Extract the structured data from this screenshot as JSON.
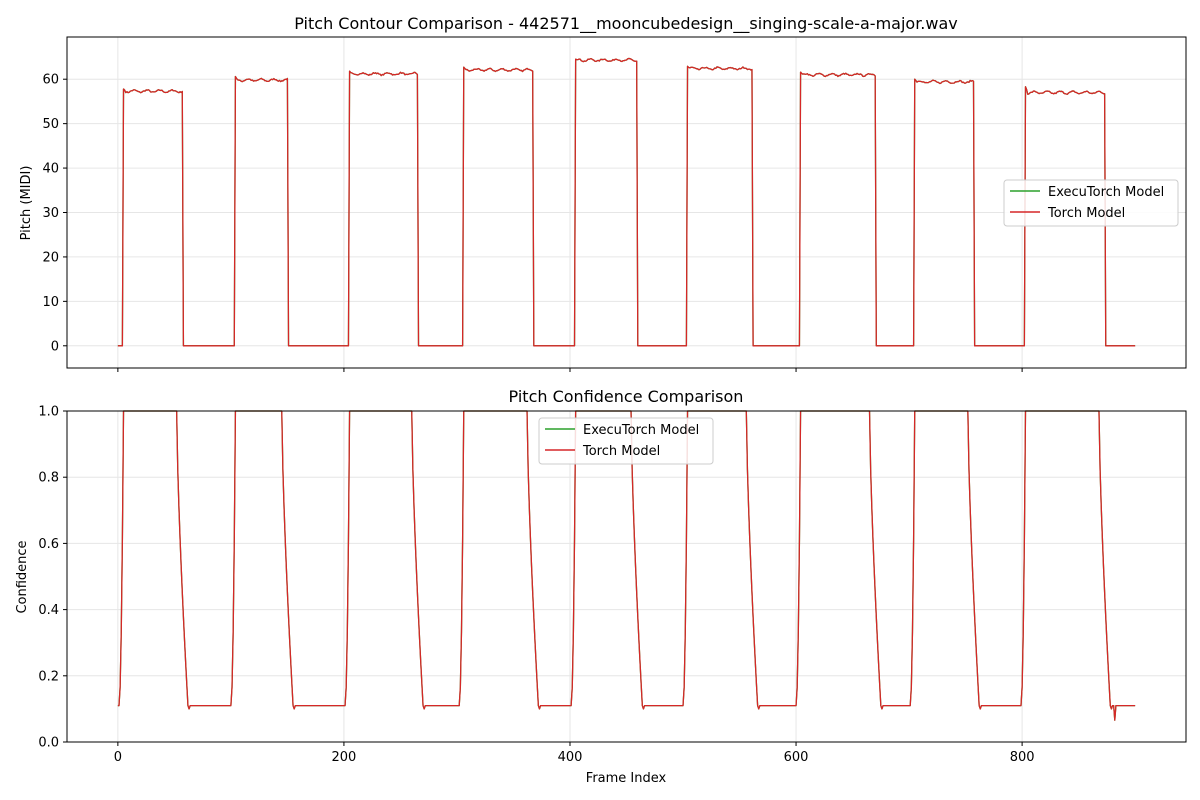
{
  "chart_data": [
    {
      "type": "line",
      "title": "Pitch Contour Comparison - 442571__mooncubedesign__singing-scale-a-major.wav",
      "xlabel": "",
      "ylabel": "Pitch (MIDI)",
      "xlim": [
        -45,
        945
      ],
      "ylim": [
        -5,
        69.5
      ],
      "xticks": [
        0,
        200,
        400,
        600,
        800
      ],
      "xtick_labels": [],
      "yticks": [
        0,
        10,
        20,
        30,
        40,
        50,
        60
      ],
      "ytick_labels": [
        "0",
        "10",
        "20",
        "30",
        "40",
        "50",
        "60"
      ],
      "grid": true,
      "legend_position": "center-right",
      "segments": [
        {
          "start": 5,
          "end": 57,
          "level": 57.3,
          "peak": 57.8
        },
        {
          "start": 104,
          "end": 150,
          "level": 59.8,
          "peak": 60.6
        },
        {
          "start": 205,
          "end": 265,
          "level": 61.2,
          "peak": 61.8
        },
        {
          "start": 306,
          "end": 367,
          "level": 62.1,
          "peak": 62.7
        },
        {
          "start": 405,
          "end": 459,
          "level": 64.3,
          "peak": 64.5
        },
        {
          "start": 504,
          "end": 561,
          "level": 62.4,
          "peak": 62.9
        },
        {
          "start": 604,
          "end": 670,
          "level": 61.0,
          "peak": 61.6
        },
        {
          "start": 705,
          "end": 757,
          "level": 59.4,
          "peak": 60.0
        },
        {
          "start": 803,
          "end": 873,
          "level": 57.0,
          "peak": 58.3
        }
      ],
      "rest_value": 0,
      "frame_count": 900,
      "series": [
        {
          "name": "ExecuTorch Model",
          "color": "#2ca02c"
        },
        {
          "name": "Torch Model",
          "color": "#d62728"
        }
      ]
    },
    {
      "type": "line",
      "title": "Pitch Confidence Comparison",
      "xlabel": "Frame Index",
      "ylabel": "Confidence",
      "xlim": [
        -45,
        945
      ],
      "ylim": [
        0,
        1
      ],
      "xticks": [
        0,
        200,
        400,
        600,
        800
      ],
      "xtick_labels": [
        "0",
        "200",
        "400",
        "600",
        "800"
      ],
      "yticks": [
        0,
        0.2,
        0.4,
        0.6,
        0.8,
        1.0
      ],
      "ytick_labels": [
        "0.0",
        "0.2",
        "0.4",
        "0.6",
        "0.8",
        "1.0"
      ],
      "grid": true,
      "legend_position": "upper-center",
      "high_value": 1.0,
      "low_value": 0.11,
      "min_dip_value": 0.066,
      "series": [
        {
          "name": "ExecuTorch Model",
          "color": "#2ca02c"
        },
        {
          "name": "Torch Model",
          "color": "#d62728"
        }
      ]
    }
  ]
}
